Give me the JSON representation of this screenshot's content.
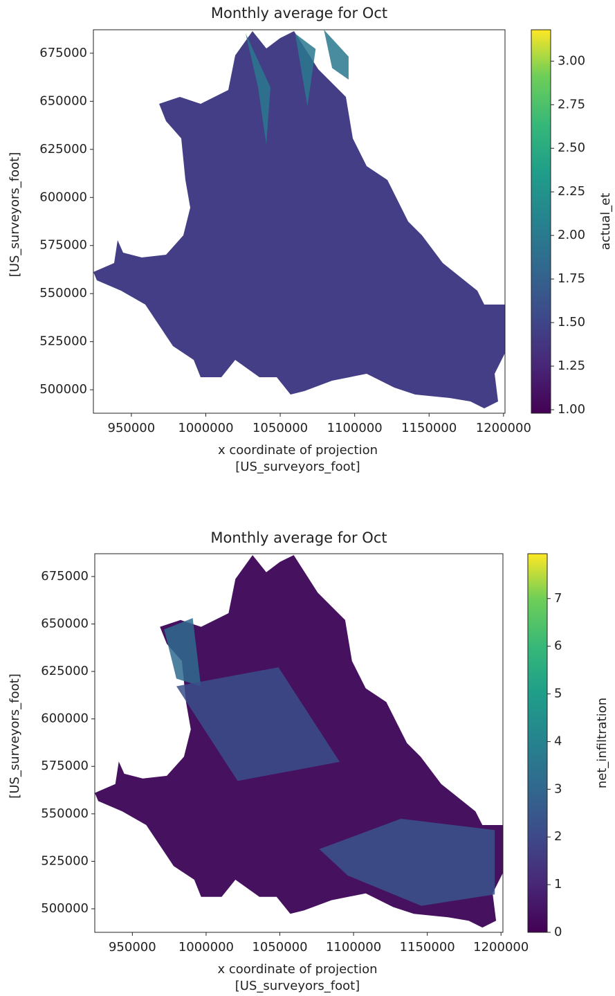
{
  "chart_data": [
    {
      "type": "raster",
      "title": "Monthly average for Oct",
      "xlabel": [
        "x coordinate of projection",
        "[US_surveyors_foot]"
      ],
      "ylabel": "[US_surveyors_foot]",
      "colorbar_label": "actual_et",
      "colormap": "viridis",
      "xlim": [
        924500,
        1201000
      ],
      "ylim": [
        487800,
        687200
      ],
      "clim": [
        0.98,
        3.18
      ],
      "xticks": [
        950000,
        1000000,
        1050000,
        1100000,
        1150000,
        1200000
      ],
      "yticks": [
        500000,
        525000,
        550000,
        575000,
        600000,
        625000,
        650000,
        675000
      ],
      "cticks": [
        {
          "value": 1,
          "label": "1.00"
        },
        {
          "value": 1.25,
          "label": "1.25"
        },
        {
          "value": 1.5,
          "label": "1.50"
        },
        {
          "value": 1.75,
          "label": "1.75"
        },
        {
          "value": 2,
          "label": "2.00"
        },
        {
          "value": 2.25,
          "label": "2.25"
        },
        {
          "value": 2.5,
          "label": "2.50"
        },
        {
          "value": 2.75,
          "label": "2.75"
        },
        {
          "value": 3,
          "label": "3.00"
        }
      ]
    },
    {
      "type": "raster",
      "title": "Monthly average for Oct",
      "xlabel": [
        "x coordinate of projection",
        "[US_surveyors_foot]"
      ],
      "ylabel": "[US_surveyors_foot]",
      "colorbar_label": "net_infiltration",
      "colormap": "viridis",
      "xlim": [
        924500,
        1201300
      ],
      "ylim": [
        487600,
        687000
      ],
      "clim": [
        0,
        7.94
      ],
      "xticks": [
        950000,
        1000000,
        1050000,
        1100000,
        1150000,
        1200000
      ],
      "yticks": [
        500000,
        525000,
        550000,
        575000,
        600000,
        625000,
        650000,
        675000
      ],
      "cticks": [
        0,
        1,
        2,
        3,
        4,
        5,
        6,
        7
      ]
    }
  ]
}
